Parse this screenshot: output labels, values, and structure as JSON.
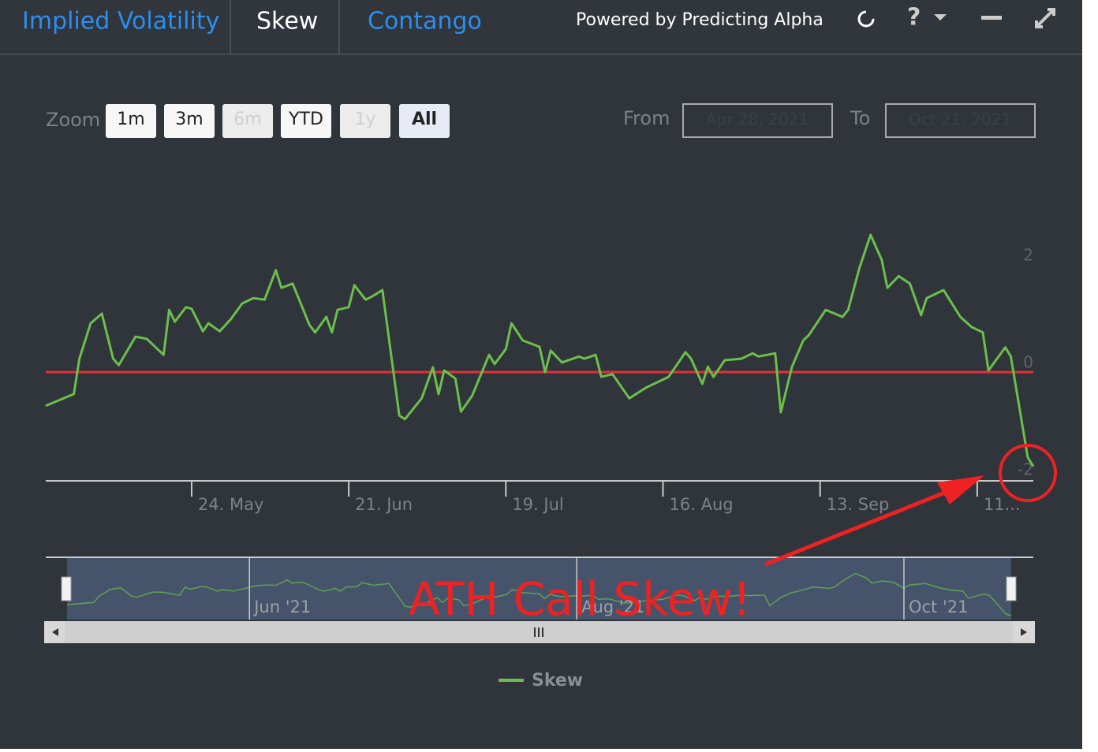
{
  "header": {
    "tabs": [
      "Implied Volatility",
      "Skew",
      "Contango"
    ],
    "powered_by": "Powered by Predicting Alpha",
    "help": "?"
  },
  "toolbar": {
    "zoom_label": "Zoom",
    "buttons": [
      "1m",
      "3m",
      "6m",
      "YTD",
      "1y",
      "All"
    ],
    "from_label": "From",
    "from_value": "Apr 28, 2021",
    "to_label": "To",
    "to_value": "Oct 21, 2021"
  },
  "chart_data": {
    "type": "line",
    "x": [
      "2021-04-28",
      "2021-05-03",
      "2021-05-04",
      "2021-05-06",
      "2021-05-08",
      "2021-05-10",
      "2021-05-11",
      "2021-05-14",
      "2021-05-16",
      "2021-05-19",
      "2021-05-20",
      "2021-05-21",
      "2021-05-23",
      "2021-05-24",
      "2021-05-26",
      "2021-05-27",
      "2021-05-29",
      "2021-05-31",
      "2021-06-02",
      "2021-06-04",
      "2021-06-06",
      "2021-06-08",
      "2021-06-09",
      "2021-06-11",
      "2021-06-14",
      "2021-06-15",
      "2021-06-17",
      "2021-06-18",
      "2021-06-19",
      "2021-06-21",
      "2021-06-22",
      "2021-06-24",
      "2021-06-25",
      "2021-06-27",
      "2021-06-30",
      "2021-07-01",
      "2021-07-04",
      "2021-07-06",
      "2021-07-07",
      "2021-07-08",
      "2021-07-10",
      "2021-07-11",
      "2021-07-13",
      "2021-07-16",
      "2021-07-17",
      "2021-07-19",
      "2021-07-20",
      "2021-07-22",
      "2021-07-25",
      "2021-07-26",
      "2021-07-27",
      "2021-07-29",
      "2021-08-01",
      "2021-08-02",
      "2021-08-04",
      "2021-08-05",
      "2021-08-07",
      "2021-08-10",
      "2021-08-13",
      "2021-08-17",
      "2021-08-20",
      "2021-08-21",
      "2021-08-23",
      "2021-08-24",
      "2021-08-25",
      "2021-08-27",
      "2021-08-30",
      "2021-09-01",
      "2021-09-02",
      "2021-09-05",
      "2021-09-06",
      "2021-09-08",
      "2021-09-10",
      "2021-09-11",
      "2021-09-14",
      "2021-09-17",
      "2021-09-18",
      "2021-09-20",
      "2021-09-22",
      "2021-09-24",
      "2021-09-25",
      "2021-09-27",
      "2021-09-29",
      "2021-10-01",
      "2021-10-02",
      "2021-10-05",
      "2021-10-08",
      "2021-10-10",
      "2021-10-12",
      "2021-10-13",
      "2021-10-16",
      "2021-10-17",
      "2021-10-20",
      "2021-10-21"
    ],
    "series": [
      {
        "name": "Skew",
        "color": "#6cbf4b",
        "values": [
          -0.63,
          -0.41,
          0.25,
          0.91,
          1.09,
          0.25,
          0.13,
          0.66,
          0.62,
          0.32,
          1.16,
          0.94,
          1.21,
          1.18,
          0.76,
          0.91,
          0.76,
          0.99,
          1.28,
          1.38,
          1.35,
          1.9,
          1.57,
          1.65,
          0.88,
          0.74,
          1.03,
          0.74,
          1.16,
          1.21,
          1.62,
          1.35,
          1.4,
          1.53,
          -0.81,
          -0.88,
          -0.49,
          0.09,
          -0.41,
          0.03,
          -0.12,
          -0.74,
          -0.44,
          0.32,
          0.15,
          0.43,
          0.91,
          0.59,
          0.47,
          0,
          0.4,
          0.18,
          0.29,
          0.25,
          0.32,
          -0.09,
          -0.04,
          -0.49,
          -0.29,
          -0.09,
          0.37,
          0.25,
          -0.22,
          0.1,
          -0.09,
          0.22,
          0.25,
          0.35,
          0.29,
          0.35,
          -0.75,
          0.1,
          0.59,
          0.69,
          1.16,
          1.03,
          1.16,
          1.94,
          2.56,
          2.09,
          1.57,
          1.79,
          1.65,
          1.06,
          1.38,
          1.53,
          1.03,
          0.84,
          0.74,
          0.03,
          0.46,
          0.29,
          -1.59,
          -1.76
        ]
      }
    ],
    "xlim": [
      "2021-04-28",
      "2021-10-21"
    ],
    "xticks": [
      {
        "value": "2021-05-24",
        "label": "24. May"
      },
      {
        "value": "2021-06-21",
        "label": "21. Jun"
      },
      {
        "value": "2021-07-19",
        "label": "19. Jul"
      },
      {
        "value": "2021-08-16",
        "label": "16. Aug"
      },
      {
        "value": "2021-09-13",
        "label": "13. Sep"
      },
      {
        "value": "2021-10-11",
        "label": "11..."
      }
    ],
    "ylim": [
      -2,
      3
    ],
    "yticks": [
      -2,
      0,
      2
    ],
    "plot_line": {
      "value": 0,
      "color": "#e0303a"
    },
    "navigator_ticks": [
      {
        "value": "2021-06-01",
        "label": "Jun '21"
      },
      {
        "value": "2021-08-01",
        "label": "Aug '21"
      },
      {
        "value": "2021-10-01",
        "label": "Oct '21"
      }
    ],
    "annotation": "ATH Call Skew!"
  }
}
